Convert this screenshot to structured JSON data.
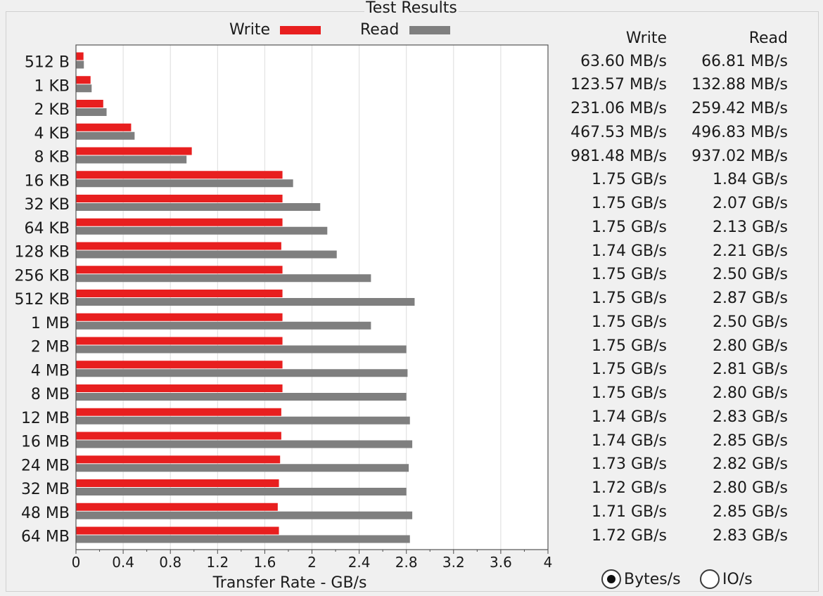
{
  "group": {
    "title": "Test Results"
  },
  "legend": {
    "write_label": "Write",
    "read_label": "Read"
  },
  "colors": {
    "write": "#e81f1f",
    "read": "#7f7f7f"
  },
  "table": {
    "write_header": "Write",
    "read_header": "Read"
  },
  "rows": [
    {
      "size": "512 B",
      "write": "63.60 MB/s",
      "read": "66.81 MB/s"
    },
    {
      "size": "1 KB",
      "write": "123.57 MB/s",
      "read": "132.88 MB/s"
    },
    {
      "size": "2 KB",
      "write": "231.06 MB/s",
      "read": "259.42 MB/s"
    },
    {
      "size": "4 KB",
      "write": "467.53 MB/s",
      "read": "496.83 MB/s"
    },
    {
      "size": "8 KB",
      "write": "981.48 MB/s",
      "read": "937.02 MB/s"
    },
    {
      "size": "16 KB",
      "write": "1.75 GB/s",
      "read": "1.84 GB/s"
    },
    {
      "size": "32 KB",
      "write": "1.75 GB/s",
      "read": "2.07 GB/s"
    },
    {
      "size": "64 KB",
      "write": "1.75 GB/s",
      "read": "2.13 GB/s"
    },
    {
      "size": "128 KB",
      "write": "1.74 GB/s",
      "read": "2.21 GB/s"
    },
    {
      "size": "256 KB",
      "write": "1.75 GB/s",
      "read": "2.50 GB/s"
    },
    {
      "size": "512 KB",
      "write": "1.75 GB/s",
      "read": "2.87 GB/s"
    },
    {
      "size": "1 MB",
      "write": "1.75 GB/s",
      "read": "2.50 GB/s"
    },
    {
      "size": "2 MB",
      "write": "1.75 GB/s",
      "read": "2.80 GB/s"
    },
    {
      "size": "4 MB",
      "write": "1.75 GB/s",
      "read": "2.81 GB/s"
    },
    {
      "size": "8 MB",
      "write": "1.75 GB/s",
      "read": "2.80 GB/s"
    },
    {
      "size": "12 MB",
      "write": "1.74 GB/s",
      "read": "2.83 GB/s"
    },
    {
      "size": "16 MB",
      "write": "1.74 GB/s",
      "read": "2.85 GB/s"
    },
    {
      "size": "24 MB",
      "write": "1.73 GB/s",
      "read": "2.82 GB/s"
    },
    {
      "size": "32 MB",
      "write": "1.72 GB/s",
      "read": "2.80 GB/s"
    },
    {
      "size": "48 MB",
      "write": "1.71 GB/s",
      "read": "2.85 GB/s"
    },
    {
      "size": "64 MB",
      "write": "1.72 GB/s",
      "read": "2.83 GB/s"
    }
  ],
  "units": {
    "bytes_label": "Bytes/s",
    "ios_label": "IO/s",
    "selected": "bytes"
  },
  "chart_data": {
    "type": "bar",
    "orientation": "horizontal",
    "title": "Test Results",
    "xlabel": "Transfer Rate - GB/s",
    "ylabel": "",
    "xlim": [
      0,
      4
    ],
    "xticks": [
      "0",
      "0.4",
      "0.8",
      "1.2",
      "1.6",
      "2",
      "2.4",
      "2.8",
      "3.2",
      "3.6",
      "4"
    ],
    "grid": true,
    "legend_position": "top",
    "categories": [
      "512 B",
      "1 KB",
      "2 KB",
      "4 KB",
      "8 KB",
      "16 KB",
      "32 KB",
      "64 KB",
      "128 KB",
      "256 KB",
      "512 KB",
      "1 MB",
      "2 MB",
      "4 MB",
      "8 MB",
      "12 MB",
      "16 MB",
      "24 MB",
      "32 MB",
      "48 MB",
      "64 MB"
    ],
    "series": [
      {
        "name": "Write",
        "color": "#e81f1f",
        "values": [
          0.0636,
          0.12357,
          0.23106,
          0.46753,
          0.98148,
          1.75,
          1.75,
          1.75,
          1.74,
          1.75,
          1.75,
          1.75,
          1.75,
          1.75,
          1.75,
          1.74,
          1.74,
          1.73,
          1.72,
          1.71,
          1.72
        ]
      },
      {
        "name": "Read",
        "color": "#7f7f7f",
        "values": [
          0.06681,
          0.13288,
          0.25942,
          0.49683,
          0.93702,
          1.84,
          2.07,
          2.13,
          2.21,
          2.5,
          2.87,
          2.5,
          2.8,
          2.81,
          2.8,
          2.83,
          2.85,
          2.82,
          2.8,
          2.85,
          2.83
        ]
      }
    ]
  }
}
